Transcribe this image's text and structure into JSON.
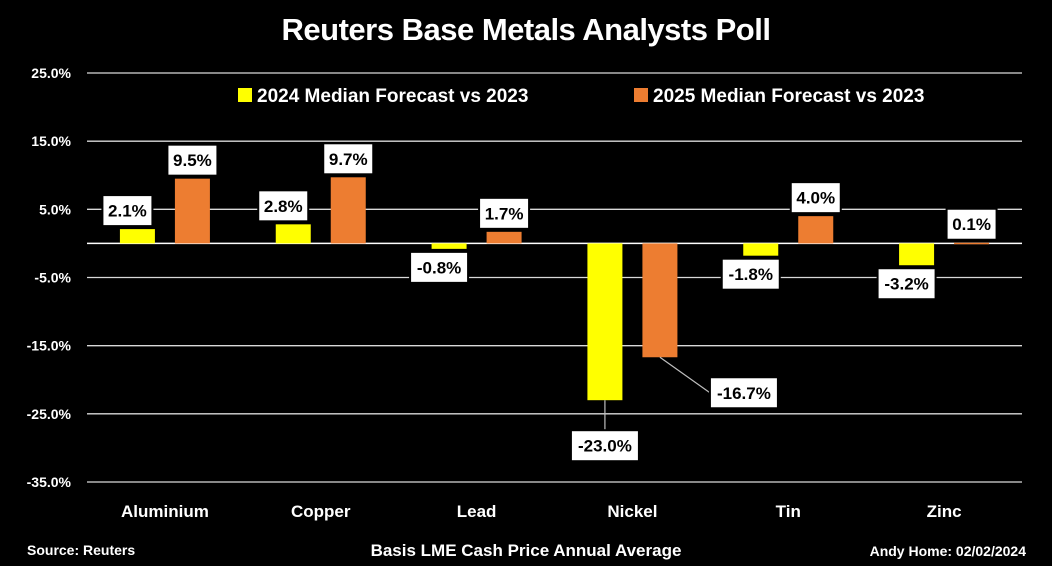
{
  "chart_data": {
    "type": "bar",
    "title": "Reuters Base Metals Analysts Poll",
    "subtitle": "Basis LME Cash Price Annual Average",
    "source": "Source: Reuters",
    "credit": "Andy Home: 02/02/2024",
    "categories": [
      "Aluminium",
      "Copper",
      "Lead",
      "Nickel",
      "Tin",
      "Zinc"
    ],
    "series": [
      {
        "name": "2024 Median Forecast vs 2023",
        "color": "#FFFF00",
        "values": [
          2.1,
          2.8,
          -0.8,
          -23.0,
          -1.8,
          -3.2
        ],
        "labels": [
          "2.1%",
          "2.8%",
          "-0.8%",
          "-23.0%",
          "-1.8%",
          "-3.2%"
        ]
      },
      {
        "name": "2025 Median Forecast vs 2023",
        "color": "#ED7D31",
        "values": [
          9.5,
          9.7,
          1.7,
          -16.7,
          4.0,
          0.1
        ],
        "labels": [
          "9.5%",
          "9.7%",
          "1.7%",
          "-16.7%",
          "4.0%",
          "0.1%"
        ]
      }
    ],
    "yticks": [
      25,
      15,
      5,
      -5,
      -15,
      -25,
      -35
    ],
    "ytick_labels": [
      "25.0%",
      "15.0%",
      "5.0%",
      "-5.0%",
      "-15.0%",
      "-25.0%",
      "-35.0%"
    ],
    "ylim": [
      -35,
      25
    ],
    "grid": true,
    "legend_position": "top"
  }
}
